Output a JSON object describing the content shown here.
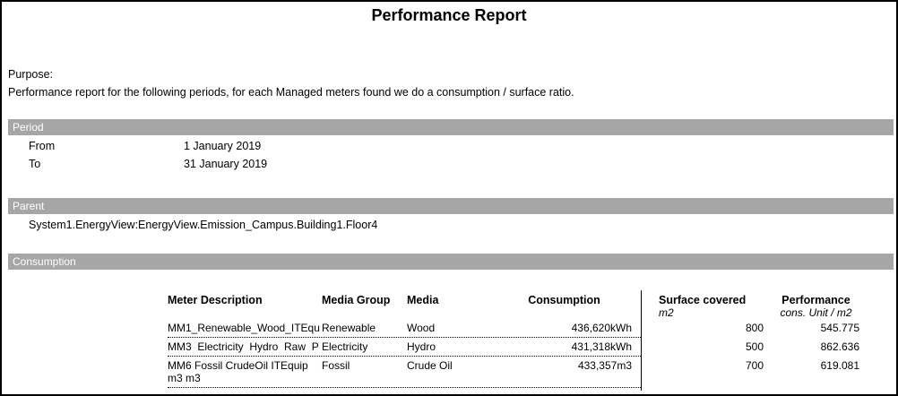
{
  "report": {
    "title": "Performance Report",
    "purpose_label": "Purpose:",
    "purpose_text": "Performance report for the following periods, for each Managed meters found we do a consumption / surface ratio."
  },
  "period": {
    "section_title": "Period",
    "from_label": "From",
    "from_value": "1 January 2019",
    "to_label": "To",
    "to_value": "31 January 2019"
  },
  "parent": {
    "section_title": "Parent",
    "value": "System1.EnergyView:EnergyView.Emission_Campus.Building1.Floor4"
  },
  "consumption": {
    "section_title": "Consumption",
    "table": {
      "headers": {
        "meter_description": "Meter Description",
        "media_group": "Media Group",
        "media": "Media",
        "consumption": "Consumption",
        "surface_covered": "Surface covered",
        "surface_unit": "m2",
        "performance": "Performance",
        "performance_unit": "cons. Unit / m2"
      },
      "rows": [
        {
          "meter_description": "MM1_Renewable_Wood_ITEqu",
          "media_group": "Renewable",
          "media": "Wood",
          "consumption": "436,620kWh",
          "surface_covered": "800",
          "performance": "545.775"
        },
        {
          "meter_description": "MM3  Electricity  Hydro  Raw  P",
          "media_group": "Electricity",
          "media": "Hydro",
          "consumption": "431,318kWh",
          "surface_covered": "500",
          "performance": "862.636"
        },
        {
          "meter_description": "MM6 Fossil CrudeOil ITEquip m3 m3",
          "media_group": "Fossil",
          "media": "Crude Oil",
          "consumption": "433,357m3",
          "surface_covered": "700",
          "performance": "619.081"
        }
      ]
    }
  },
  "colors": {
    "section_bar_background": "#a6a6a6",
    "section_bar_text": "#ffffff",
    "page_border": "#000000"
  }
}
